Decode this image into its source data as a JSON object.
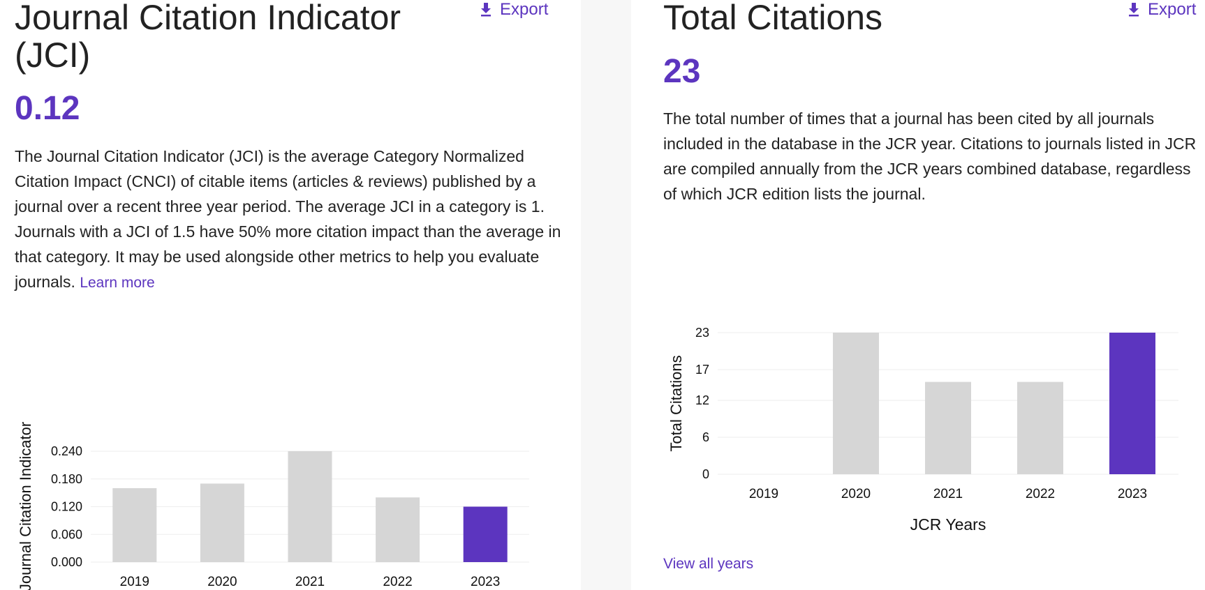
{
  "jci": {
    "title_line1": "Journal Citation Indicator",
    "title_line2": "(JCI)",
    "export_label": "Export",
    "value": "0.12",
    "description": "The Journal Citation Indicator (JCI) is the average Category Normalized Citation Impact (CNCI) of citable items (articles & reviews) published by a journal over a recent three year period. The average JCI in a category is 1. Journals with a JCI of 1.5 have 50% more citation impact than the average in that category. It may be used alongside other metrics to help you evaluate journals.",
    "learn_more": "Learn more"
  },
  "total_citations": {
    "title": "Total Citations",
    "export_label": "Export",
    "value": "23",
    "description": "The total number of times that a journal has been cited by all journals included in the database in the JCR year. Citations to journals listed in JCR are compiled annually from the JCR years combined database, regardless of which JCR edition lists the journal.",
    "view_all": "View all years"
  },
  "colors": {
    "accent": "#5c35bf",
    "bar": "#d6d6d6",
    "grid": "#eeeeee"
  },
  "chart_data": [
    {
      "type": "bar",
      "title": "",
      "xlabel": "",
      "ylabel": "Journal Citation Indicator",
      "categories": [
        "2019",
        "2020",
        "2021",
        "2022",
        "2023"
      ],
      "values": [
        0.16,
        0.17,
        0.24,
        0.14,
        0.12
      ],
      "highlight": "2023",
      "ylim": [
        0,
        0.24
      ],
      "yticks": [
        "0.000",
        "0.060",
        "0.120",
        "0.180",
        "0.240"
      ],
      "grid": true
    },
    {
      "type": "bar",
      "title": "",
      "xlabel": "JCR Years",
      "ylabel": "Total Citations",
      "categories": [
        "2019",
        "2020",
        "2021",
        "2022",
        "2023"
      ],
      "values": [
        0,
        23,
        15,
        15,
        23
      ],
      "highlight": "2023",
      "ylim": [
        0,
        23
      ],
      "yticks": [
        "0",
        "6",
        "12",
        "17",
        "23"
      ],
      "grid": true
    }
  ]
}
